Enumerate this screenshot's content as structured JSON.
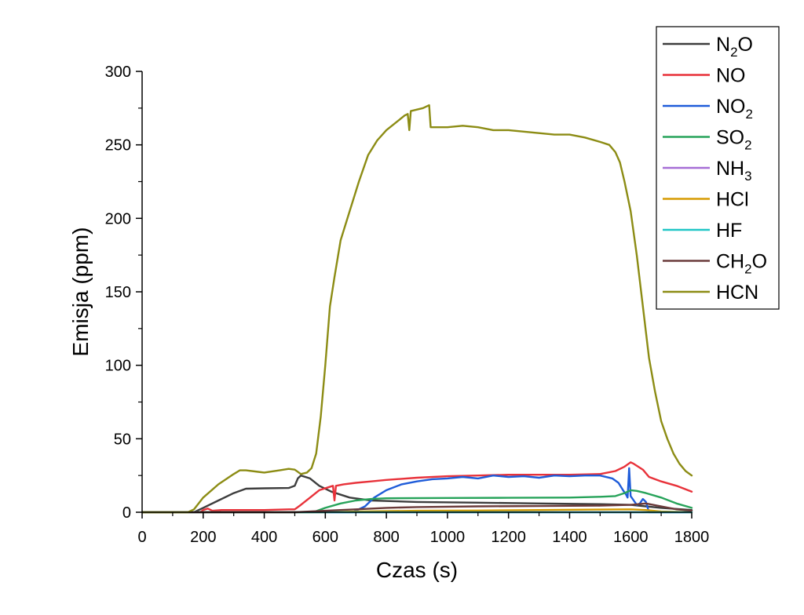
{
  "chart_data": {
    "type": "line",
    "xlabel": "Czas (s)",
    "ylabel": "Emisja (ppm)",
    "xlim": [
      0,
      1800
    ],
    "ylim": [
      0,
      300
    ],
    "xticks": [
      0,
      200,
      400,
      600,
      800,
      1000,
      1200,
      1400,
      1600,
      1800
    ],
    "yticks": [
      0,
      50,
      100,
      150,
      200,
      250,
      300
    ],
    "grid": false,
    "legend_position": "top-right outside",
    "series": [
      {
        "name": "N2O",
        "base": "N",
        "sub": "2",
        "suffix": "O",
        "color": "#3d3d3d",
        "points": [
          [
            0,
            0
          ],
          [
            170,
            0
          ],
          [
            200,
            3
          ],
          [
            250,
            8
          ],
          [
            300,
            13
          ],
          [
            340,
            16
          ],
          [
            400,
            16.3
          ],
          [
            480,
            16.5
          ],
          [
            500,
            18
          ],
          [
            510,
            23
          ],
          [
            520,
            25
          ],
          [
            550,
            23
          ],
          [
            580,
            18
          ],
          [
            620,
            14
          ],
          [
            680,
            10
          ],
          [
            750,
            8
          ],
          [
            900,
            7
          ],
          [
            1100,
            6.5
          ],
          [
            1300,
            6
          ],
          [
            1500,
            5.5
          ],
          [
            1600,
            5
          ],
          [
            1650,
            4
          ],
          [
            1700,
            3
          ],
          [
            1800,
            1.5
          ]
        ]
      },
      {
        "name": "NO",
        "base": "NO",
        "sub": "",
        "suffix": "",
        "color": "#e8323a",
        "points": [
          [
            0,
            0
          ],
          [
            190,
            0
          ],
          [
            200,
            1.5
          ],
          [
            215,
            2.5
          ],
          [
            230,
            1
          ],
          [
            260,
            1.5
          ],
          [
            300,
            1.5
          ],
          [
            400,
            1.5
          ],
          [
            480,
            2
          ],
          [
            500,
            2
          ],
          [
            520,
            5
          ],
          [
            550,
            10
          ],
          [
            580,
            15
          ],
          [
            610,
            17
          ],
          [
            625,
            18
          ],
          [
            630,
            8
          ],
          [
            635,
            18
          ],
          [
            660,
            19
          ],
          [
            700,
            20
          ],
          [
            750,
            21
          ],
          [
            800,
            22
          ],
          [
            900,
            23.5
          ],
          [
            1000,
            24.5
          ],
          [
            1100,
            25
          ],
          [
            1200,
            25.5
          ],
          [
            1300,
            25.5
          ],
          [
            1400,
            25.5
          ],
          [
            1500,
            26
          ],
          [
            1550,
            28
          ],
          [
            1580,
            31
          ],
          [
            1600,
            34
          ],
          [
            1610,
            33
          ],
          [
            1640,
            29
          ],
          [
            1660,
            24
          ],
          [
            1700,
            21
          ],
          [
            1750,
            18
          ],
          [
            1800,
            14
          ]
        ]
      },
      {
        "name": "NO2",
        "base": "NO",
        "sub": "2",
        "suffix": "",
        "color": "#1f5cd9",
        "points": [
          [
            0,
            0
          ],
          [
            690,
            0
          ],
          [
            700,
            1
          ],
          [
            730,
            4
          ],
          [
            760,
            10
          ],
          [
            800,
            15
          ],
          [
            850,
            19
          ],
          [
            900,
            21
          ],
          [
            950,
            22.5
          ],
          [
            1000,
            23
          ],
          [
            1050,
            24
          ],
          [
            1100,
            23
          ],
          [
            1150,
            25
          ],
          [
            1200,
            24
          ],
          [
            1250,
            24.5
          ],
          [
            1300,
            23.5
          ],
          [
            1350,
            25
          ],
          [
            1400,
            24.5
          ],
          [
            1450,
            25
          ],
          [
            1500,
            25
          ],
          [
            1540,
            23
          ],
          [
            1560,
            20
          ],
          [
            1575,
            15
          ],
          [
            1585,
            12
          ],
          [
            1590,
            10
          ],
          [
            1595,
            30
          ],
          [
            1600,
            11
          ],
          [
            1610,
            8
          ],
          [
            1620,
            5
          ],
          [
            1630,
            6
          ],
          [
            1640,
            9
          ],
          [
            1650,
            7
          ],
          [
            1660,
            0
          ],
          [
            1800,
            0
          ]
        ]
      },
      {
        "name": "SO2",
        "base": "SO",
        "sub": "2",
        "suffix": "",
        "color": "#27a35a",
        "points": [
          [
            0,
            0
          ],
          [
            560,
            0
          ],
          [
            600,
            3
          ],
          [
            650,
            6
          ],
          [
            700,
            8
          ],
          [
            750,
            9
          ],
          [
            800,
            9.5
          ],
          [
            1000,
            9.7
          ],
          [
            1200,
            9.8
          ],
          [
            1400,
            10
          ],
          [
            1500,
            10.5
          ],
          [
            1550,
            11
          ],
          [
            1580,
            13
          ],
          [
            1600,
            15
          ],
          [
            1620,
            14.5
          ],
          [
            1650,
            13
          ],
          [
            1700,
            10
          ],
          [
            1750,
            6
          ],
          [
            1800,
            3
          ]
        ]
      },
      {
        "name": "NH3",
        "base": "NH",
        "sub": "3",
        "suffix": "",
        "color": "#a66ed6",
        "points": [
          [
            0,
            0
          ],
          [
            1800,
            0
          ]
        ]
      },
      {
        "name": "HCl",
        "base": "HCl",
        "sub": "",
        "suffix": "",
        "color": "#d69a00",
        "points": [
          [
            0,
            0
          ],
          [
            600,
            0
          ],
          [
            700,
            0.5
          ],
          [
            900,
            1
          ],
          [
            1100,
            1.2
          ],
          [
            1300,
            1.5
          ],
          [
            1500,
            1.8
          ],
          [
            1600,
            2
          ],
          [
            1650,
            1.5
          ],
          [
            1700,
            0.5
          ],
          [
            1800,
            0
          ]
        ]
      },
      {
        "name": "HF",
        "base": "HF",
        "sub": "",
        "suffix": "",
        "color": "#20c6c6",
        "points": [
          [
            0,
            0
          ],
          [
            1800,
            0
          ]
        ]
      },
      {
        "name": "CH2O",
        "base": "CH",
        "sub": "2",
        "suffix": "O",
        "color": "#6a3a3a",
        "points": [
          [
            0,
            0
          ],
          [
            500,
            0
          ],
          [
            600,
            1
          ],
          [
            700,
            2
          ],
          [
            800,
            3
          ],
          [
            900,
            3.5
          ],
          [
            1100,
            4
          ],
          [
            1300,
            4.2
          ],
          [
            1500,
            4.5
          ],
          [
            1600,
            5
          ],
          [
            1650,
            6
          ],
          [
            1700,
            4
          ],
          [
            1750,
            2
          ],
          [
            1800,
            1
          ]
        ]
      },
      {
        "name": "HCN",
        "base": "HCN",
        "sub": "",
        "suffix": "",
        "color": "#8c8c14",
        "points": [
          [
            0,
            0
          ],
          [
            150,
            0
          ],
          [
            170,
            2
          ],
          [
            200,
            10
          ],
          [
            250,
            19
          ],
          [
            300,
            26
          ],
          [
            320,
            28.5
          ],
          [
            340,
            28.5
          ],
          [
            380,
            27.5
          ],
          [
            400,
            27
          ],
          [
            450,
            28.5
          ],
          [
            480,
            29.5
          ],
          [
            500,
            29
          ],
          [
            520,
            26
          ],
          [
            540,
            27
          ],
          [
            555,
            30
          ],
          [
            570,
            40
          ],
          [
            585,
            65
          ],
          [
            600,
            100
          ],
          [
            615,
            140
          ],
          [
            630,
            160
          ],
          [
            650,
            185
          ],
          [
            680,
            205
          ],
          [
            710,
            225
          ],
          [
            740,
            243
          ],
          [
            770,
            253
          ],
          [
            800,
            260
          ],
          [
            830,
            265
          ],
          [
            860,
            270
          ],
          [
            870,
            271
          ],
          [
            875,
            260
          ],
          [
            880,
            273
          ],
          [
            900,
            274
          ],
          [
            920,
            275
          ],
          [
            940,
            277
          ],
          [
            945,
            262
          ],
          [
            950,
            262
          ],
          [
            1000,
            262
          ],
          [
            1050,
            263
          ],
          [
            1100,
            262
          ],
          [
            1150,
            260
          ],
          [
            1200,
            260
          ],
          [
            1250,
            259
          ],
          [
            1300,
            258
          ],
          [
            1350,
            257
          ],
          [
            1400,
            257
          ],
          [
            1450,
            255
          ],
          [
            1500,
            252
          ],
          [
            1530,
            250
          ],
          [
            1550,
            245
          ],
          [
            1565,
            238
          ],
          [
            1580,
            225
          ],
          [
            1600,
            205
          ],
          [
            1620,
            175
          ],
          [
            1640,
            140
          ],
          [
            1660,
            105
          ],
          [
            1680,
            82
          ],
          [
            1700,
            62
          ],
          [
            1720,
            50
          ],
          [
            1740,
            40
          ],
          [
            1760,
            33
          ],
          [
            1780,
            28
          ],
          [
            1800,
            25
          ]
        ]
      }
    ]
  }
}
